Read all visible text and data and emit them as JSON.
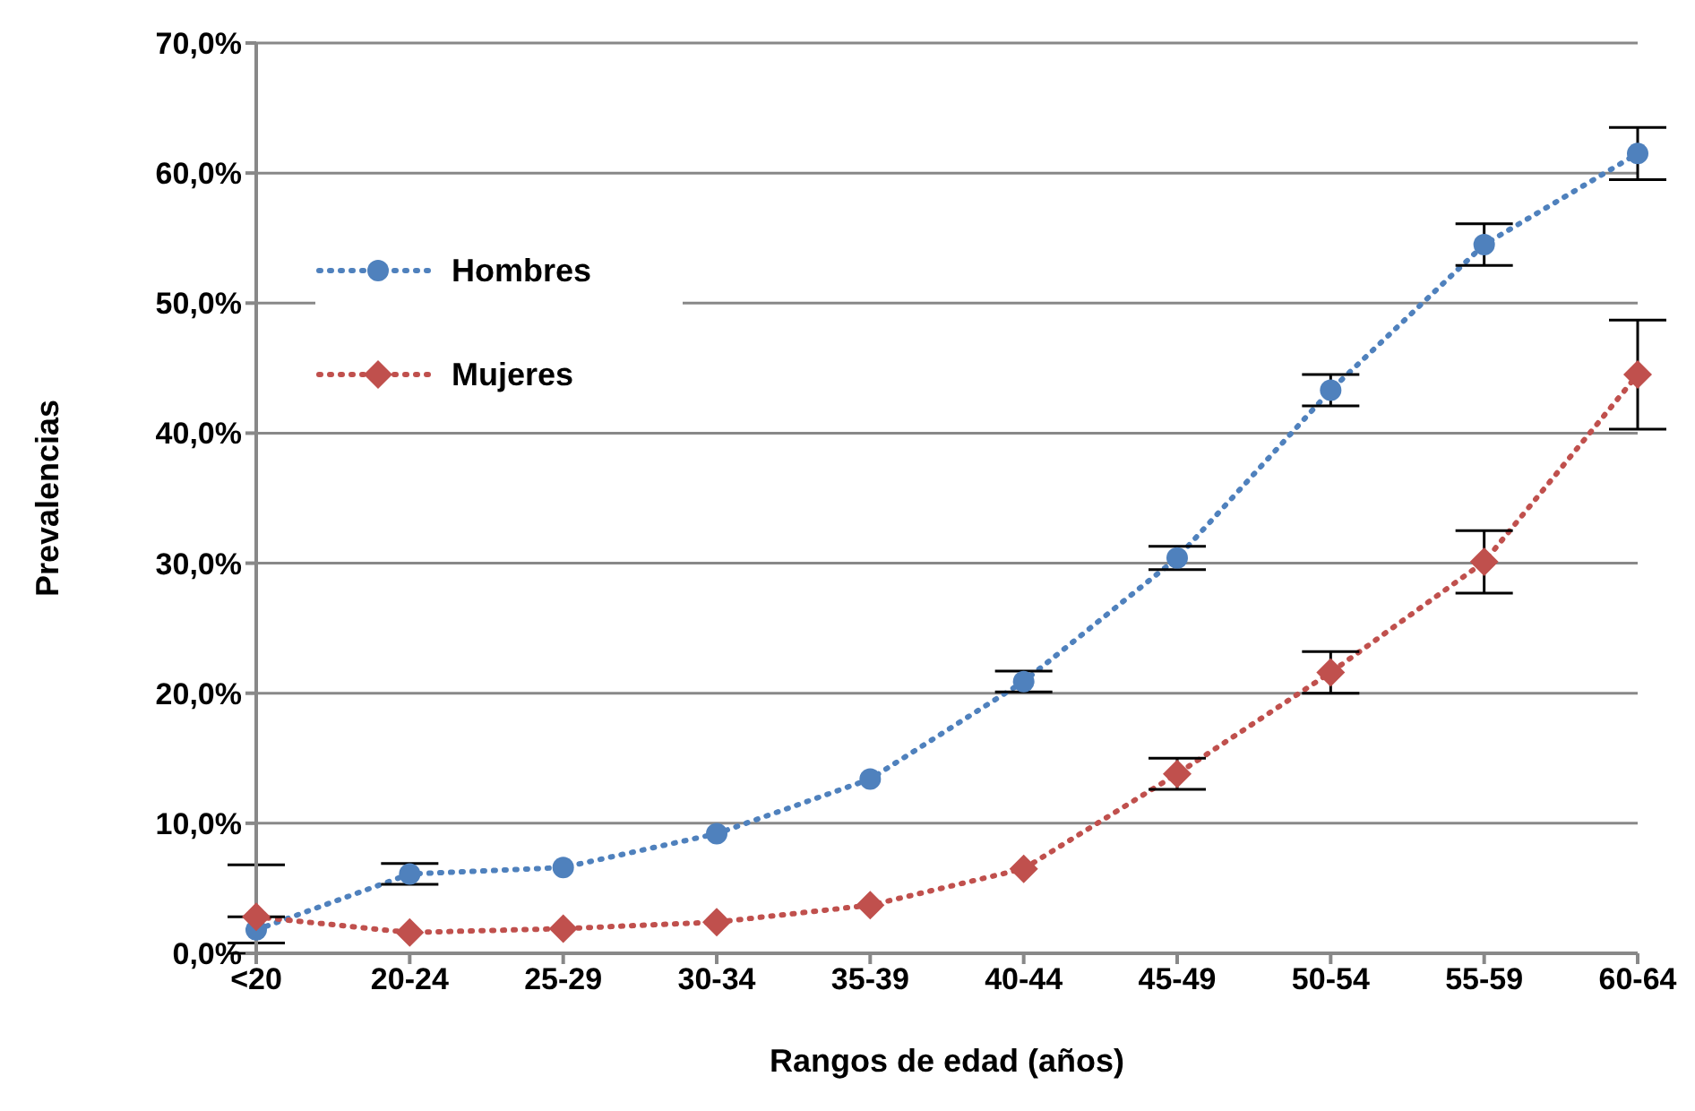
{
  "chart_data": {
    "type": "line",
    "xlabel": "Rangos de edad (años)",
    "ylabel": "Prevalencias",
    "categories": [
      "<20",
      "20-24",
      "25-29",
      "30-34",
      "35-39",
      "40-44",
      "45-49",
      "50-54",
      "55-59",
      "60-64"
    ],
    "series": [
      {
        "name": "Hombres",
        "color": "#4f81bd",
        "marker": "circle",
        "values": [
          1.8,
          6.1,
          6.6,
          9.2,
          13.4,
          20.9,
          30.4,
          43.3,
          54.5,
          61.5
        ],
        "errors": [
          1,
          0.8,
          null,
          null,
          null,
          0.8,
          0.9,
          1.2,
          1.6,
          2
        ]
      },
      {
        "name": "Mujeres",
        "color": "#c0504d",
        "marker": "diamond",
        "values": [
          2.8,
          1.6,
          1.9,
          2.4,
          3.7,
          6.5,
          13.8,
          21.6,
          30.1,
          44.5
        ],
        "errors": [
          [
            0,
            6.8
          ],
          null,
          null,
          null,
          null,
          null,
          1.2,
          1.6,
          2.4,
          4.2
        ]
      }
    ],
    "ylim": [
      0,
      70
    ],
    "yticks": [
      {
        "value": 0,
        "label": "0,0%"
      },
      {
        "value": 10,
        "label": "10,0%"
      },
      {
        "value": 20,
        "label": "20,0%"
      },
      {
        "value": 30,
        "label": "30,0%"
      },
      {
        "value": 40,
        "label": "40,0%"
      },
      {
        "value": 50,
        "label": "50,0%"
      },
      {
        "value": 60,
        "label": "60,0%"
      },
      {
        "value": 70,
        "label": "70,0%"
      }
    ],
    "grid": "y",
    "legend": "top left",
    "line_style": "dotted"
  }
}
